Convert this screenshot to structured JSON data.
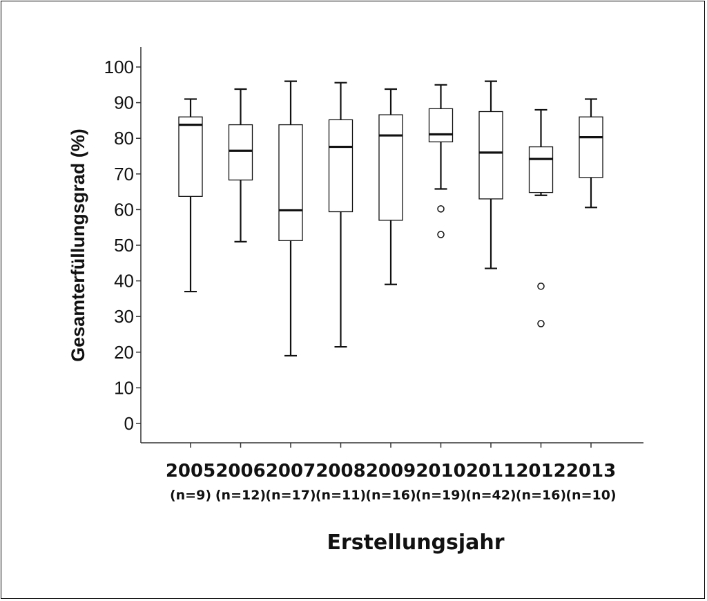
{
  "chart_data": {
    "type": "boxplot",
    "ylabel": "Gesamterfüllungsgrad (%)",
    "xlabel": "Erstellungsjahr",
    "ylim": [
      -5,
      105
    ],
    "yticks": [
      0,
      10,
      20,
      30,
      40,
      50,
      60,
      70,
      80,
      90,
      100
    ],
    "grid": false,
    "categories": [
      "2005",
      "2006",
      "2007",
      "2008",
      "2009",
      "2010",
      "2011",
      "2012",
      "2013"
    ],
    "sample_sizes": [
      "(n=9)",
      "(n=12)",
      "(n=17)",
      "(n=11)",
      "(n=16)",
      "(n=19)",
      "(n=42)",
      "(n=16)",
      "(n=10)"
    ],
    "boxes": [
      {
        "category": "2005",
        "whisker_low": 37,
        "q1": 63.7,
        "median": 83.8,
        "q3": 86,
        "whisker_high": 91,
        "outliers": []
      },
      {
        "category": "2006",
        "whisker_low": 51,
        "q1": 68.3,
        "median": 76.5,
        "q3": 83.8,
        "whisker_high": 93.8,
        "outliers": []
      },
      {
        "category": "2007",
        "whisker_low": 19,
        "q1": 51.3,
        "median": 59.8,
        "q3": 83.8,
        "whisker_high": 96,
        "outliers": []
      },
      {
        "category": "2008",
        "whisker_low": 21.5,
        "q1": 59.4,
        "median": 77.6,
        "q3": 85.2,
        "whisker_high": 95.6,
        "outliers": []
      },
      {
        "category": "2009",
        "whisker_low": 39,
        "q1": 57,
        "median": 80.8,
        "q3": 86.6,
        "whisker_high": 93.8,
        "outliers": []
      },
      {
        "category": "2010",
        "whisker_low": 65.8,
        "q1": 79,
        "median": 81.1,
        "q3": 88.3,
        "whisker_high": 95,
        "outliers": [
          60.2,
          53
        ]
      },
      {
        "category": "2011",
        "whisker_low": 43.5,
        "q1": 63,
        "median": 76,
        "q3": 87.5,
        "whisker_high": 96,
        "outliers": []
      },
      {
        "category": "2012",
        "whisker_low": 64,
        "q1": 64.8,
        "median": 74.2,
        "q3": 77.6,
        "whisker_high": 88,
        "outliers": [
          38.5,
          28
        ]
      },
      {
        "category": "2013",
        "whisker_low": 60.6,
        "q1": 69,
        "median": 80.3,
        "q3": 86,
        "whisker_high": 91,
        "outliers": []
      }
    ]
  }
}
